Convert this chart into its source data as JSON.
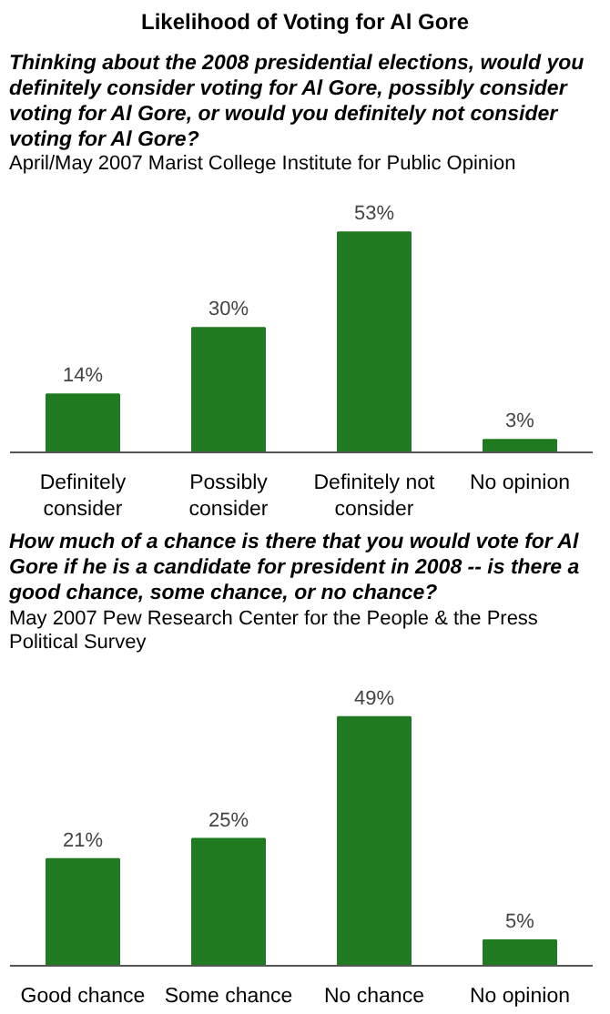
{
  "chart_data": [
    {
      "type": "bar",
      "title": "Likelihood of Voting for Al Gore",
      "subtitle": "Thinking about the 2008 presidential elections, would you definitely consider voting for Al Gore, possibly consider voting for Al Gore, or would you definitely not consider voting for Al Gore?",
      "annotations": [
        "April/May 2007 Marist College Institute for Public Opinion"
      ],
      "categories": [
        "Definitely consider",
        "Possibly consider",
        "Definitely not consider",
        "No opinion"
      ],
      "values": [
        14,
        30,
        53,
        3
      ],
      "value_labels": [
        "14%",
        "30%",
        "53%",
        "3%"
      ],
      "color": "#207a20"
    },
    {
      "type": "bar",
      "subtitle": "How much of a chance is there that you would vote for Al Gore if he is a candidate for president in 2008 -- is there a good chance, some chance, or no chance?",
      "annotations": [
        "May 2007 Pew Research Center for the People & the Press Political Survey"
      ],
      "categories": [
        "Good chance",
        "Some chance",
        "No chance",
        "No opinion"
      ],
      "values": [
        21,
        25,
        49,
        5
      ],
      "value_labels": [
        "21%",
        "25%",
        "49%",
        "5%"
      ],
      "color": "#207a20"
    }
  ]
}
